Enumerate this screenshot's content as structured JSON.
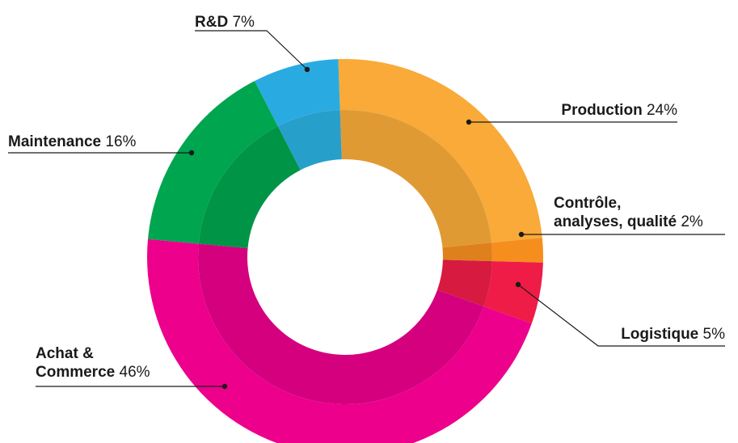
{
  "chart_data": {
    "type": "pie",
    "title": "",
    "slices": [
      {
        "label": "Production",
        "value": 24,
        "display": "24%",
        "color": "#F9AA38",
        "inner_color": "#E09A34"
      },
      {
        "label": "Contrôle, analyses, qualité",
        "label_lines": [
          "Contrôle,",
          "analyses, qualité"
        ],
        "value": 2,
        "display": "2%",
        "color": "#F68E1E",
        "inner_color": "#DE801B"
      },
      {
        "label": "Logistique",
        "value": 5,
        "display": "5%",
        "color": "#EE1C47",
        "inner_color": "#D61A40"
      },
      {
        "label": "Achat & Commerce",
        "label_lines": [
          "Achat &",
          "Commerce"
        ],
        "value": 46,
        "display": "46%",
        "color": "#EC008C",
        "inner_color": "#D4007E"
      },
      {
        "label": "Maintenance",
        "value": 16,
        "display": "16%",
        "color": "#00A54F",
        "inner_color": "#009447"
      },
      {
        "label": "R&D",
        "value": 7,
        "display": "7%",
        "color": "#29ABE2",
        "inner_color": "#279FCB"
      }
    ]
  }
}
